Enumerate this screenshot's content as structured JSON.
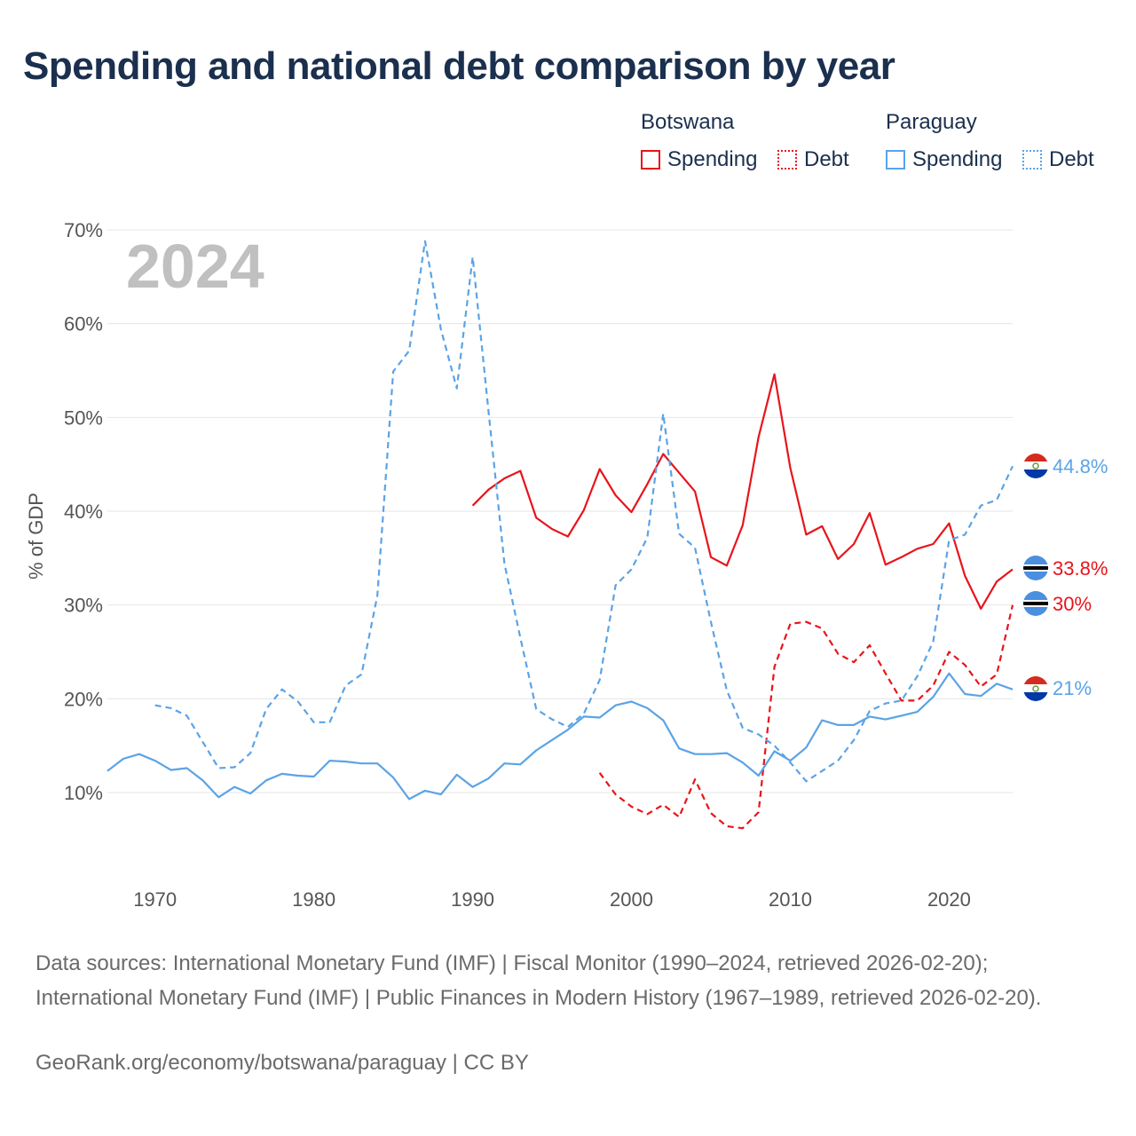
{
  "title": "Spending and national debt comparison by year",
  "legend": {
    "groups": [
      {
        "country": "Botswana",
        "color": "#e8141b",
        "spending_label": "Spending",
        "debt_label": "Debt"
      },
      {
        "country": "Paraguay",
        "color": "#5ba3e6",
        "spending_label": "Spending",
        "debt_label": "Debt"
      }
    ]
  },
  "footer": {
    "sources": "Data sources: International Monetary Fund (IMF) | Fiscal Monitor (1990–2024, retrieved 2026-02-20); International Monetary Fund (IMF) | Public Finances in Modern History (1967–1989, retrieved 2026-02-20).",
    "credit": "GeoRank.org/economy/botswana/paraguay | CC BY"
  },
  "chart_data": {
    "type": "line",
    "title": "Spending and national debt comparison by year",
    "year_label": "2024",
    "ylabel": "% of GDP",
    "xlabel": "",
    "ylim": [
      3,
      73
    ],
    "xlim": [
      1967,
      2024
    ],
    "yticks": [
      10,
      20,
      30,
      40,
      50,
      60,
      70
    ],
    "ytick_labels": [
      "10%",
      "20%",
      "30%",
      "40%",
      "50%",
      "60%",
      "70%"
    ],
    "xticks": [
      1970,
      1980,
      1990,
      2000,
      2010,
      2020
    ],
    "xtick_labels": [
      "1970",
      "1980",
      "1990",
      "2000",
      "2010",
      "2020"
    ],
    "series": [
      {
        "name": "Botswana Spending",
        "country": "Botswana",
        "metric": "Spending",
        "color": "#e8141b",
        "dash": "solid",
        "end_label": "33.8%",
        "x": [
          1990,
          1991,
          1992,
          1993,
          1994,
          1995,
          1996,
          1997,
          1998,
          1999,
          2000,
          2001,
          2002,
          2003,
          2004,
          2005,
          2006,
          2007,
          2008,
          2009,
          2010,
          2011,
          2012,
          2013,
          2014,
          2015,
          2016,
          2017,
          2018,
          2019,
          2020,
          2021,
          2022,
          2023,
          2024
        ],
        "values": [
          40.6,
          42.3,
          43.5,
          44.3,
          39.3,
          38.1,
          37.3,
          40.1,
          44.5,
          41.7,
          39.9,
          42.9,
          46.1,
          44.1,
          42.1,
          35.1,
          34.2,
          38.5,
          47.9,
          54.6,
          44.6,
          37.5,
          38.4,
          34.9,
          36.5,
          39.8,
          34.3,
          35.1,
          36.0,
          36.5,
          38.7,
          33.1,
          29.6,
          32.5,
          33.8
        ]
      },
      {
        "name": "Botswana Debt",
        "country": "Botswana",
        "metric": "Debt",
        "color": "#e8141b",
        "dash": "dashed",
        "end_label": "30%",
        "x": [
          1998,
          1999,
          2000,
          2001,
          2002,
          2003,
          2004,
          2005,
          2006,
          2007,
          2008,
          2009,
          2010,
          2011,
          2012,
          2013,
          2014,
          2015,
          2016,
          2017,
          2018,
          2019,
          2020,
          2021,
          2022,
          2023,
          2024
        ],
        "values": [
          12.1,
          9.8,
          8.5,
          7.7,
          8.7,
          7.4,
          11.4,
          7.8,
          6.4,
          6.2,
          7.9,
          23.4,
          28.0,
          28.2,
          27.5,
          24.8,
          23.9,
          25.7,
          22.7,
          19.8,
          19.8,
          21.4,
          25.0,
          23.6,
          21.3,
          22.6,
          30.0
        ]
      },
      {
        "name": "Paraguay Spending",
        "country": "Paraguay",
        "metric": "Spending",
        "color": "#5ba3e6",
        "dash": "solid",
        "end_label": "21%",
        "x": [
          1967,
          1968,
          1969,
          1970,
          1971,
          1972,
          1973,
          1974,
          1975,
          1976,
          1977,
          1978,
          1979,
          1980,
          1981,
          1982,
          1983,
          1984,
          1985,
          1986,
          1987,
          1988,
          1989,
          1990,
          1991,
          1992,
          1993,
          1994,
          1995,
          1996,
          1997,
          1998,
          1999,
          2000,
          2001,
          2002,
          2003,
          2004,
          2005,
          2006,
          2007,
          2008,
          2009,
          2010,
          2011,
          2012,
          2013,
          2014,
          2015,
          2016,
          2017,
          2018,
          2019,
          2020,
          2021,
          2022,
          2023,
          2024
        ],
        "values": [
          12.3,
          13.6,
          14.1,
          13.4,
          12.4,
          12.6,
          11.3,
          9.5,
          10.6,
          9.9,
          11.3,
          12.0,
          11.8,
          11.7,
          13.4,
          13.3,
          13.1,
          13.1,
          11.6,
          9.3,
          10.2,
          9.8,
          11.9,
          10.6,
          11.5,
          13.1,
          13.0,
          14.5,
          15.6,
          16.7,
          18.1,
          18.0,
          19.3,
          19.7,
          19.0,
          17.7,
          14.7,
          14.1,
          14.1,
          14.2,
          13.2,
          11.8,
          14.4,
          13.4,
          14.8,
          17.7,
          17.2,
          17.2,
          18.1,
          17.8,
          18.2,
          18.6,
          20.2,
          22.7,
          20.5,
          20.3,
          21.6,
          21.0
        ]
      },
      {
        "name": "Paraguay Debt",
        "country": "Paraguay",
        "metric": "Debt",
        "color": "#5ba3e6",
        "dash": "dashed",
        "end_label": "44.8%",
        "x": [
          1970,
          1971,
          1972,
          1973,
          1974,
          1975,
          1976,
          1977,
          1978,
          1979,
          1980,
          1981,
          1982,
          1983,
          1984,
          1985,
          1986,
          1987,
          1988,
          1989,
          1990,
          1991,
          1992,
          1993,
          1994,
          1995,
          1996,
          1997,
          1998,
          1999,
          2000,
          2001,
          2002,
          2003,
          2004,
          2005,
          2006,
          2007,
          2008,
          2009,
          2010,
          2011,
          2012,
          2013,
          2014,
          2015,
          2016,
          2017,
          2018,
          2019,
          2020,
          2021,
          2022,
          2023,
          2024
        ],
        "values": [
          19.3,
          19.0,
          18.2,
          15.4,
          12.6,
          12.7,
          14.2,
          18.9,
          21.0,
          19.7,
          17.5,
          17.5,
          21.4,
          22.6,
          31.0,
          54.9,
          57.1,
          68.8,
          59.4,
          53.1,
          67.1,
          50.6,
          34.4,
          26.5,
          18.9,
          17.8,
          17.0,
          18.4,
          22.0,
          32.1,
          33.8,
          37.2,
          50.4,
          37.6,
          36.1,
          28.2,
          20.9,
          16.9,
          16.2,
          15.0,
          13.2,
          11.2,
          12.3,
          13.4,
          15.6,
          18.7,
          19.5,
          19.8,
          22.4,
          26.1,
          36.9,
          37.5,
          40.6,
          41.2,
          44.8
        ]
      }
    ]
  }
}
